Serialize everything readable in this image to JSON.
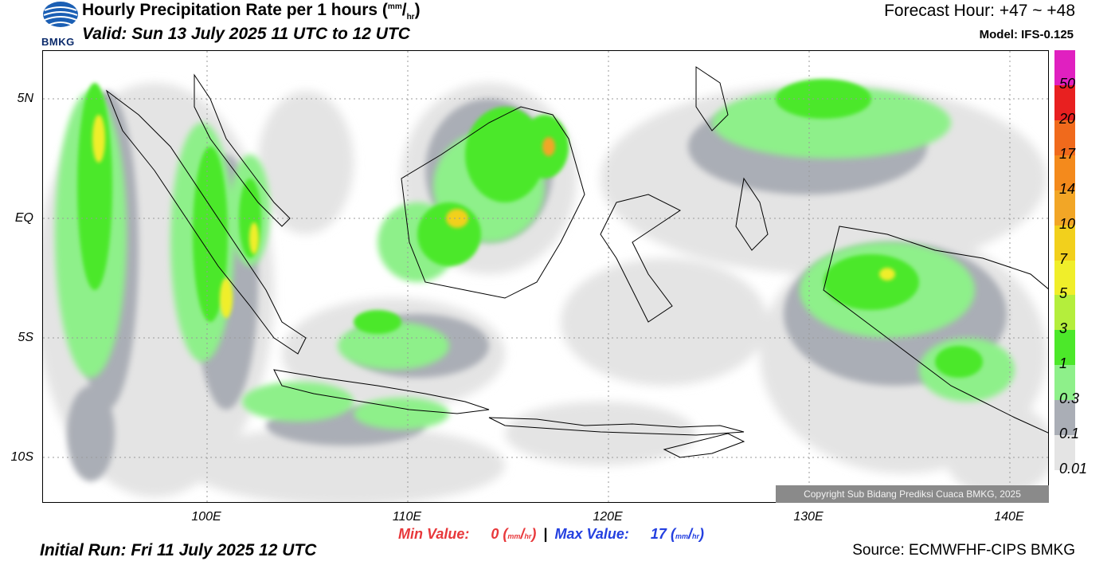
{
  "header": {
    "title": "Hourly Precipitation Rate per 1 hours",
    "title_unit_num": "mm",
    "title_unit_den": "hr",
    "valid": "Valid: Sun 13 July 2025 11 UTC to 12 UTC",
    "forecast_hour": "Forecast Hour: +47 ~ +48",
    "model": "Model: IFS-0.125",
    "logo_text": "BMKG"
  },
  "axes": {
    "lat_ticks": [
      "5N",
      "EQ",
      "5S",
      "10S"
    ],
    "lon_ticks": [
      "100E",
      "110E",
      "120E",
      "130E",
      "140E"
    ]
  },
  "legend": {
    "labels": [
      "50",
      "20",
      "17",
      "14",
      "10",
      "7",
      "5",
      "3",
      "1",
      "0.3",
      "0.1",
      "0.01"
    ],
    "colors": [
      "#e020c0",
      "#e82020",
      "#f06a1c",
      "#f48a1c",
      "#f2a626",
      "#f2d01c",
      "#f0ee2a",
      "#b4ee3c",
      "#4ce82a",
      "#8ef08a",
      "#aaaeb6",
      "#e4e4e4"
    ]
  },
  "stats": {
    "min_label": "Min Value:",
    "min_value": "0",
    "max_label": "Max Value:",
    "max_value": "17",
    "unit_num": "mm",
    "unit_den": "hr",
    "separator": "|"
  },
  "footer": {
    "initial_run": "Initial Run: Fri 11 July 2025 12 UTC",
    "source": "Source: ECMWFHF-CIPS BMKG",
    "copyright": "Copyright Sub Bidang Prediksi Cuaca BMKG, 2025"
  },
  "colors": {
    "light_gray": "#e4e4e4",
    "mid_gray": "#aaaeb6",
    "light_green": "#8ef08a",
    "green": "#4ce82a",
    "yellow_green": "#b4ee3c",
    "yellow": "#f0ee2a",
    "orange": "#f2a626",
    "min_color": "#e8383b",
    "max_color": "#2440e0"
  }
}
